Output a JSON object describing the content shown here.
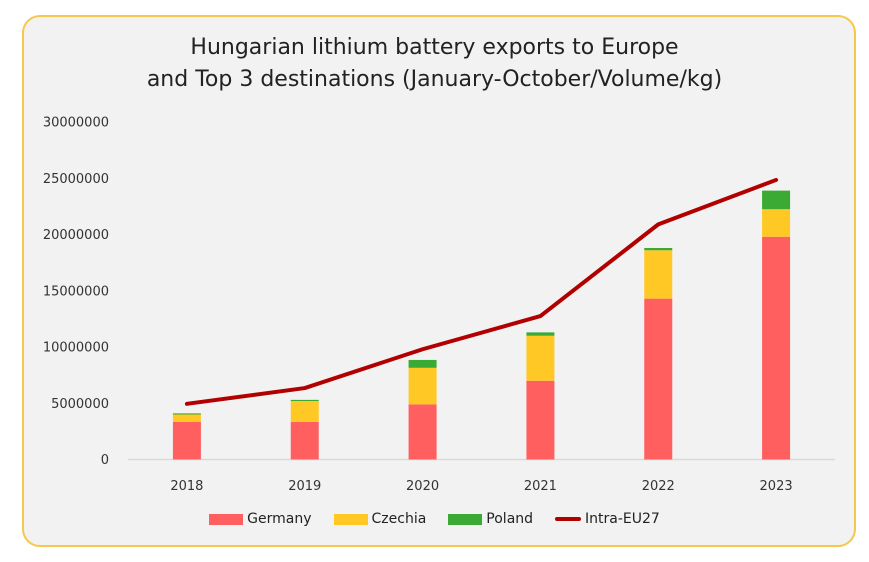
{
  "chart_data": {
    "type": "bar",
    "stacked": true,
    "title": "Hungarian lithium battery exports to Europe and Top 3 destinations (January-October/Volume/kg)",
    "title_lines": [
      "Hungarian lithium battery exports to Europe",
      "and Top 3 destinations (January-October/Volume/kg)"
    ],
    "categories": [
      "2018",
      "2019",
      "2020",
      "2021",
      "2022",
      "2023"
    ],
    "ylim": [
      0,
      30000000
    ],
    "yticks": [
      0,
      5000000,
      10000000,
      15000000,
      20000000,
      25000000,
      30000000
    ],
    "ytick_labels": [
      "0",
      "5000000",
      "10000000",
      "15000000",
      "20000000",
      "25000000",
      "30000000"
    ],
    "grid": false,
    "legend_position": "bottom",
    "series": [
      {
        "name": "Germany",
        "type": "bar",
        "color": "#ff5f5f",
        "values": [
          3350000,
          3350000,
          4900000,
          7000000,
          14300000,
          19800000
        ]
      },
      {
        "name": "Czechia",
        "type": "bar",
        "color": "#ffc825",
        "values": [
          650000,
          1850000,
          3250000,
          4000000,
          4300000,
          2450000
        ]
      },
      {
        "name": "Poland",
        "type": "bar",
        "color": "#3aaa35",
        "values": [
          100000,
          100000,
          700000,
          300000,
          200000,
          1650000
        ]
      },
      {
        "name": "Intra-EU27",
        "type": "line",
        "color": "#b20000",
        "values": [
          4950000,
          6350000,
          9800000,
          12750000,
          20900000,
          24850000
        ]
      }
    ]
  }
}
